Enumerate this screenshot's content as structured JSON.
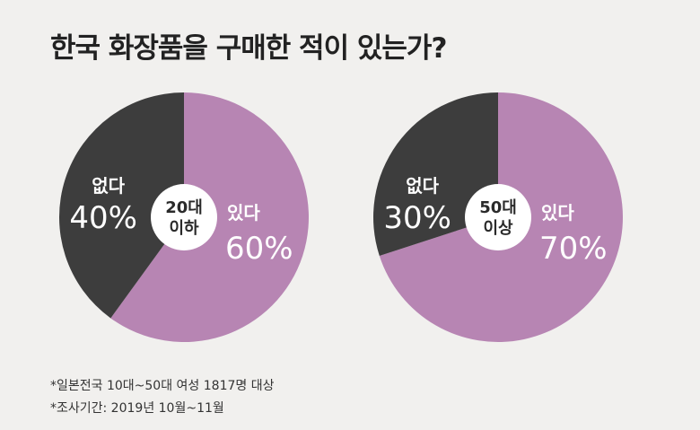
{
  "chart_data": [
    {
      "type": "pie",
      "title": "한국 화장품을 구매한 적이 있는가?",
      "center_label": [
        "20대",
        "이하"
      ],
      "slices": [
        {
          "label": "있다",
          "value": 60,
          "display": "60%",
          "color": "#b785b3"
        },
        {
          "label": "없다",
          "value": 40,
          "display": "40%",
          "color": "#3d3d3d"
        }
      ]
    },
    {
      "type": "pie",
      "title": "한국 화장품을 구매한 적이 있는가?",
      "center_label": [
        "50대",
        "이상"
      ],
      "slices": [
        {
          "label": "있다",
          "value": 70,
          "display": "70%",
          "color": "#b785b3"
        },
        {
          "label": "없다",
          "value": 30,
          "display": "30%",
          "color": "#3d3d3d"
        }
      ]
    }
  ],
  "title": "한국 화장품을 구매한 적이 있는가?",
  "notes": [
    "*일본전국 10대~50대 여성 1817명 대상",
    "*조사기간: 2019년 10월~11월"
  ]
}
